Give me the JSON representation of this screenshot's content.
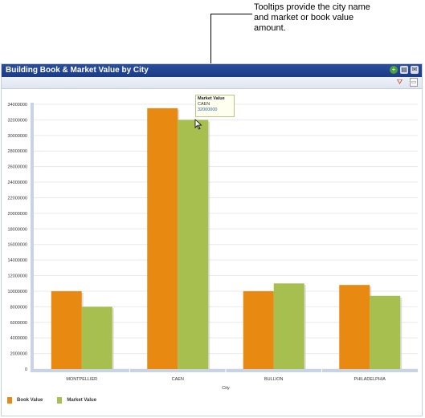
{
  "annotation": {
    "lines": [
      "Tooltips provide the city name",
      "and market or book value",
      "amount."
    ]
  },
  "panel": {
    "title": "Building Book & Market Value by City",
    "icons": [
      "add-icon",
      "print-icon",
      "mail-icon"
    ],
    "toolbar_icons": [
      "filter-icon",
      "export-icon"
    ]
  },
  "tooltip": {
    "series": "Market Value",
    "category": "CAEN",
    "value": "32000000"
  },
  "colors": {
    "book_value": "#e88a12",
    "market_value": "#a7bf4f",
    "header": "#1f4290",
    "axis": "#c8d3e6"
  },
  "chart_data": {
    "type": "bar",
    "title": "Building Book & Market Value by City",
    "xlabel": "City",
    "ylabel": "",
    "categories": [
      "MONTPELLIER",
      "CAEN",
      "BULLION",
      "PHILADELPHIA"
    ],
    "series": [
      {
        "name": "Book Value",
        "values": [
          10000000,
          33500000,
          10000000,
          10800000
        ]
      },
      {
        "name": "Market Value",
        "values": [
          8000000,
          32000000,
          11000000,
          9400000
        ]
      }
    ],
    "ylim": [
      0,
      34000000
    ],
    "yticks": [
      0,
      2000000,
      4000000,
      6000000,
      8000000,
      10000000,
      12000000,
      14000000,
      16000000,
      18000000,
      20000000,
      22000000,
      24000000,
      26000000,
      28000000,
      30000000,
      32000000,
      34000000
    ],
    "ytick_labels": [
      "0",
      "2000000",
      "4000000",
      "6000000",
      "8000000",
      "10000000",
      "12000000",
      "14000000",
      "16000000",
      "18000000",
      "20000000",
      "22000000",
      "24000000",
      "26000000",
      "28000000",
      "30000000",
      "32000000",
      "34000000"
    ],
    "grid": true,
    "legend": "bottom-left"
  }
}
